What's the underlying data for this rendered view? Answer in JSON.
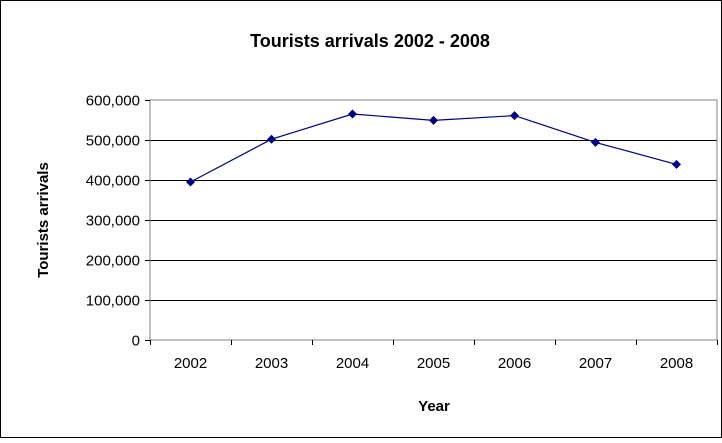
{
  "chart_data": {
    "type": "line",
    "title": "Tourists arrivals 2002 - 2008",
    "xlabel": "Year",
    "ylabel": "Tourists arrivals",
    "categories": [
      "2002",
      "2003",
      "2004",
      "2005",
      "2006",
      "2007",
      "2008"
    ],
    "series": [
      {
        "values": [
          395000,
          502000,
          565000,
          549000,
          561000,
          494000,
          439000
        ],
        "color": "#000080",
        "marker": "diamond"
      }
    ],
    "ylim": [
      0,
      600000
    ],
    "y_ticks": [
      0,
      100000,
      200000,
      300000,
      400000,
      500000,
      600000
    ],
    "y_tick_labels": [
      "0",
      "100,000",
      "200,000",
      "300,000",
      "400,000",
      "500,000",
      "600,000"
    ],
    "grid": true,
    "legend": "none",
    "colors": {
      "line": "#000080",
      "grid": "#000000",
      "plot_border": "#808080",
      "frame": "#000000"
    }
  }
}
